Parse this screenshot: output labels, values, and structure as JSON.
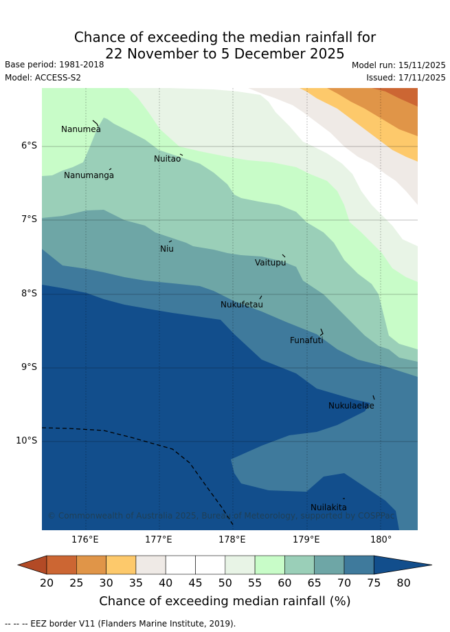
{
  "title": {
    "line1": "Chance of exceeding the median rainfall for",
    "line2": "22 November to 5 December 2025"
  },
  "meta": {
    "base_period": "Base period: 1981-2018",
    "model": "Model: ACCESS-S2",
    "model_run": "Model run: 15/11/2025",
    "issued": "Issued: 17/11/2025"
  },
  "axes": {
    "lon_ticks": [
      "176°E",
      "177°E",
      "178°E",
      "179°E",
      "180°"
    ],
    "lat_ticks": [
      "6°S",
      "7°S",
      "8°S",
      "9°S",
      "10°S"
    ]
  },
  "places": [
    {
      "name": "Nanumea"
    },
    {
      "name": "Nuitao"
    },
    {
      "name": "Nanumanga"
    },
    {
      "name": "Niu"
    },
    {
      "name": "Vaitupu"
    },
    {
      "name": "Nukufetau"
    },
    {
      "name": "Funafuti"
    },
    {
      "name": "Nukulaelae"
    },
    {
      "name": "Nuilakita"
    }
  ],
  "copyright": "© Commonwealth of Australia 2025, Bureau of Meteorology, supported by COSPPac",
  "colorbar": {
    "ticks": [
      "20",
      "25",
      "30",
      "35",
      "40",
      "45",
      "50",
      "55",
      "60",
      "65",
      "70",
      "75",
      "80"
    ],
    "colors": [
      "#b34a26",
      "#cc6633",
      "#e09548",
      "#fdc96b",
      "#efeae6",
      "#ffffff",
      "#ffffff",
      "#e8f4e6",
      "#c8fcc8",
      "#9acfb8",
      "#6ea6a6",
      "#3f7a9c",
      "#124e8c"
    ],
    "title": "Chance of exceeding median rainfall (%)"
  },
  "footnote": "--  --  -- EEZ border V11 (Flanders Marine Institute, 2019)."
}
